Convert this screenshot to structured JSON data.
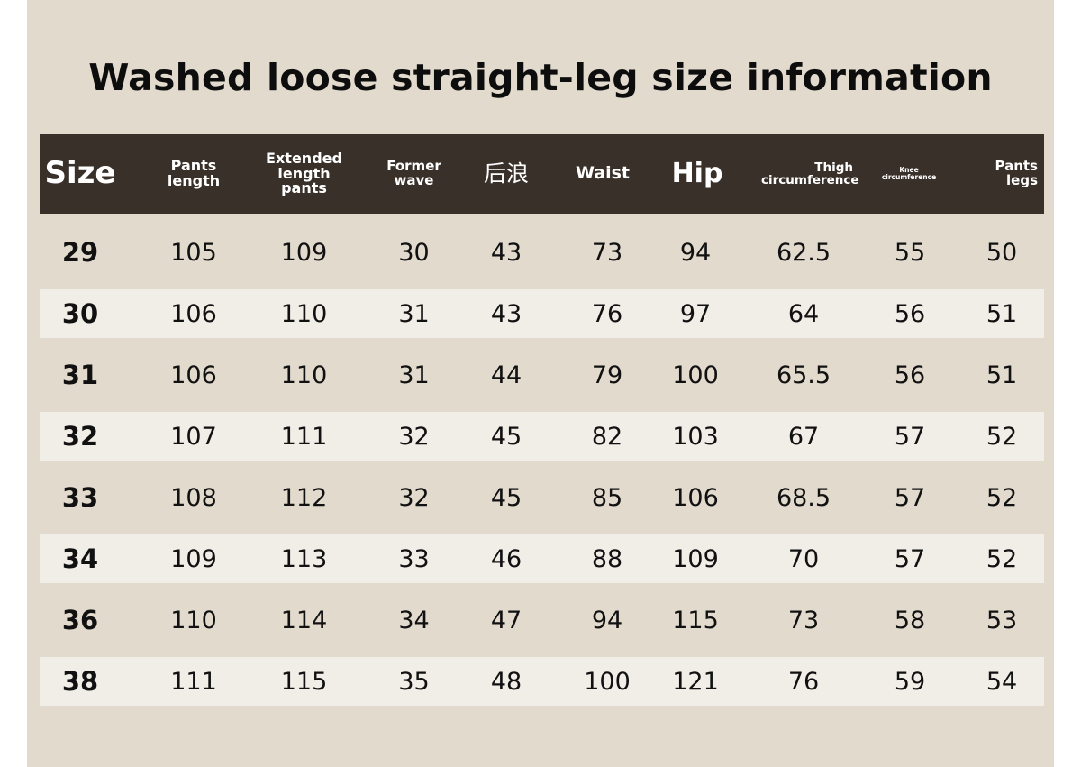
{
  "title": "Washed loose straight-leg size information",
  "headers": [
    {
      "key": "size",
      "label": "Size"
    },
    {
      "key": "pants-length",
      "label": "Pants length"
    },
    {
      "key": "extended-length-pants",
      "label": "Extended length pants"
    },
    {
      "key": "former-wave",
      "label": "Former wave"
    },
    {
      "key": "rear-rise",
      "label": "后浪"
    },
    {
      "key": "waist",
      "label": "Waist"
    },
    {
      "key": "hip",
      "label": "Hip"
    },
    {
      "key": "thigh-circumference",
      "label": "Thigh circumference"
    },
    {
      "key": "knee-circumference",
      "label": "Knee circumference"
    },
    {
      "key": "pants-legs",
      "label": "Pants legs"
    }
  ],
  "rows": [
    [
      "29",
      "105",
      "109",
      "30",
      "43",
      "73",
      "94",
      "62.5",
      "55",
      "50"
    ],
    [
      "30",
      "106",
      "110",
      "31",
      "43",
      "76",
      "97",
      "64",
      "56",
      "51"
    ],
    [
      "31",
      "106",
      "110",
      "31",
      "44",
      "79",
      "100",
      "65.5",
      "56",
      "51"
    ],
    [
      "32",
      "107",
      "111",
      "32",
      "45",
      "82",
      "103",
      "67",
      "57",
      "52"
    ],
    [
      "33",
      "108",
      "112",
      "32",
      "45",
      "85",
      "106",
      "68.5",
      "57",
      "52"
    ],
    [
      "34",
      "109",
      "113",
      "33",
      "46",
      "88",
      "109",
      "70",
      "57",
      "52"
    ],
    [
      "36",
      "110",
      "114",
      "34",
      "47",
      "94",
      "115",
      "73",
      "58",
      "53"
    ],
    [
      "38",
      "111",
      "115",
      "35",
      "48",
      "100",
      "121",
      "76",
      "59",
      "54"
    ]
  ],
  "colors": {
    "header_bg": "#3a302a",
    "panel_bg": "#e2dacd",
    "stripe_bg": "#f1ede7"
  }
}
